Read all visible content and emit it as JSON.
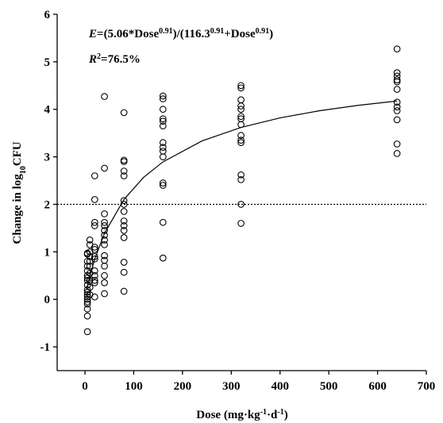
{
  "chart_data": {
    "type": "scatter",
    "equation": [
      {
        "text": "E",
        "style": "italic"
      },
      {
        "text": "=(5.06*Dose",
        "style": "normal"
      },
      {
        "text": "0.91",
        "style": "sup"
      },
      {
        "text": ")/(116.3",
        "style": "normal"
      },
      {
        "text": "0.91",
        "style": "sup"
      },
      {
        "text": "+Dose",
        "style": "normal"
      },
      {
        "text": "0.91",
        "style": "sup"
      },
      {
        "text": ")",
        "style": "normal"
      }
    ],
    "r_squared": [
      {
        "text": "R",
        "style": "italic"
      },
      {
        "text": "2",
        "style": "sup"
      },
      {
        "text": "=76.5%",
        "style": "normal"
      }
    ],
    "x_label": [
      {
        "text": "Dose (mg·kg",
        "style": "normal"
      },
      {
        "text": "-1",
        "style": "sup"
      },
      {
        "text": "·d",
        "style": "normal"
      },
      {
        "text": "-1",
        "style": "sup"
      },
      {
        "text": ")",
        "style": "normal"
      }
    ],
    "y_label": [
      {
        "text": "Change in log",
        "style": "normal"
      },
      {
        "text": "10",
        "style": "sub"
      },
      {
        "text": "CFU",
        "style": "normal"
      }
    ],
    "points": {
      "x": [
        5,
        5,
        5,
        5,
        5,
        5,
        5,
        5,
        5,
        5,
        5,
        5,
        5,
        5,
        5,
        5,
        5,
        5,
        5,
        10,
        10,
        10,
        10,
        10,
        10,
        10,
        10,
        10,
        10,
        20,
        20,
        20,
        20,
        20,
        20,
        20,
        20,
        20,
        20,
        20,
        20,
        20,
        40,
        40,
        40,
        40,
        40,
        40,
        40,
        40,
        40,
        40,
        40,
        40,
        40,
        40,
        40,
        80,
        80,
        80,
        80,
        80,
        80,
        80,
        80,
        80,
        80,
        80,
        80,
        80,
        80,
        80,
        160,
        160,
        160,
        160,
        160,
        160,
        160,
        160,
        160,
        160,
        160,
        160,
        160,
        160,
        320,
        320,
        320,
        320,
        320,
        320,
        320,
        320,
        320,
        320,
        320,
        320,
        320,
        320,
        320,
        640,
        640,
        640,
        640,
        640,
        640,
        640,
        640,
        640,
        640,
        640,
        640
      ],
      "values": [
        0.97,
        0.95,
        0.8,
        0.7,
        0.6,
        0.5,
        0.45,
        0.4,
        0.3,
        0.2,
        0.15,
        0.1,
        0.05,
        0,
        -0.05,
        -0.1,
        -0.2,
        -0.35,
        -0.68,
        1.25,
        1.15,
        1.0,
        0.9,
        0.8,
        0.7,
        0.55,
        0.4,
        0.25,
        0.1,
        2.6,
        2.1,
        1.62,
        1.55,
        1.1,
        1.05,
        0.9,
        0.85,
        0.6,
        0.5,
        0.4,
        0.35,
        0.05,
        4.27,
        2.76,
        1.8,
        1.62,
        1.55,
        1.45,
        1.35,
        1.25,
        1.15,
        0.92,
        0.82,
        0.7,
        0.5,
        0.35,
        0.12,
        3.93,
        2.93,
        2.9,
        2.7,
        2.6,
        2.08,
        2.0,
        1.85,
        1.65,
        1.55,
        1.45,
        1.3,
        0.78,
        0.57,
        0.17,
        4.28,
        4.22,
        4.0,
        3.8,
        3.75,
        3.65,
        3.3,
        3.2,
        3.12,
        3.0,
        2.45,
        2.4,
        1.62,
        0.87,
        4.5,
        4.45,
        4.2,
        4.07,
        4.0,
        3.85,
        3.8,
        3.68,
        3.45,
        3.35,
        3.3,
        2.62,
        2.52,
        2.0,
        1.6,
        5.27,
        4.77,
        4.7,
        4.62,
        4.58,
        4.42,
        4.15,
        4.05,
        3.97,
        3.78,
        3.27,
        3.07
      ]
    },
    "curve": {
      "x": [
        5,
        10,
        20,
        40,
        80,
        120,
        160,
        240,
        320,
        400,
        480,
        560,
        640
      ],
      "values": [
        0.273,
        0.49,
        0.848,
        1.389,
        2.103,
        2.566,
        2.894,
        3.335,
        3.619,
        3.819,
        3.968,
        4.083,
        4.175
      ]
    },
    "hline": 2,
    "hline_style": "dotted",
    "color": "#000000",
    "xlim": [
      -57,
      700
    ],
    "xticks": [
      0,
      100,
      200,
      300,
      400,
      500,
      600,
      700
    ],
    "ylim": [
      -1.5,
      6
    ],
    "yticks": [
      -1,
      0,
      1,
      2,
      3,
      4,
      5,
      6
    ]
  }
}
